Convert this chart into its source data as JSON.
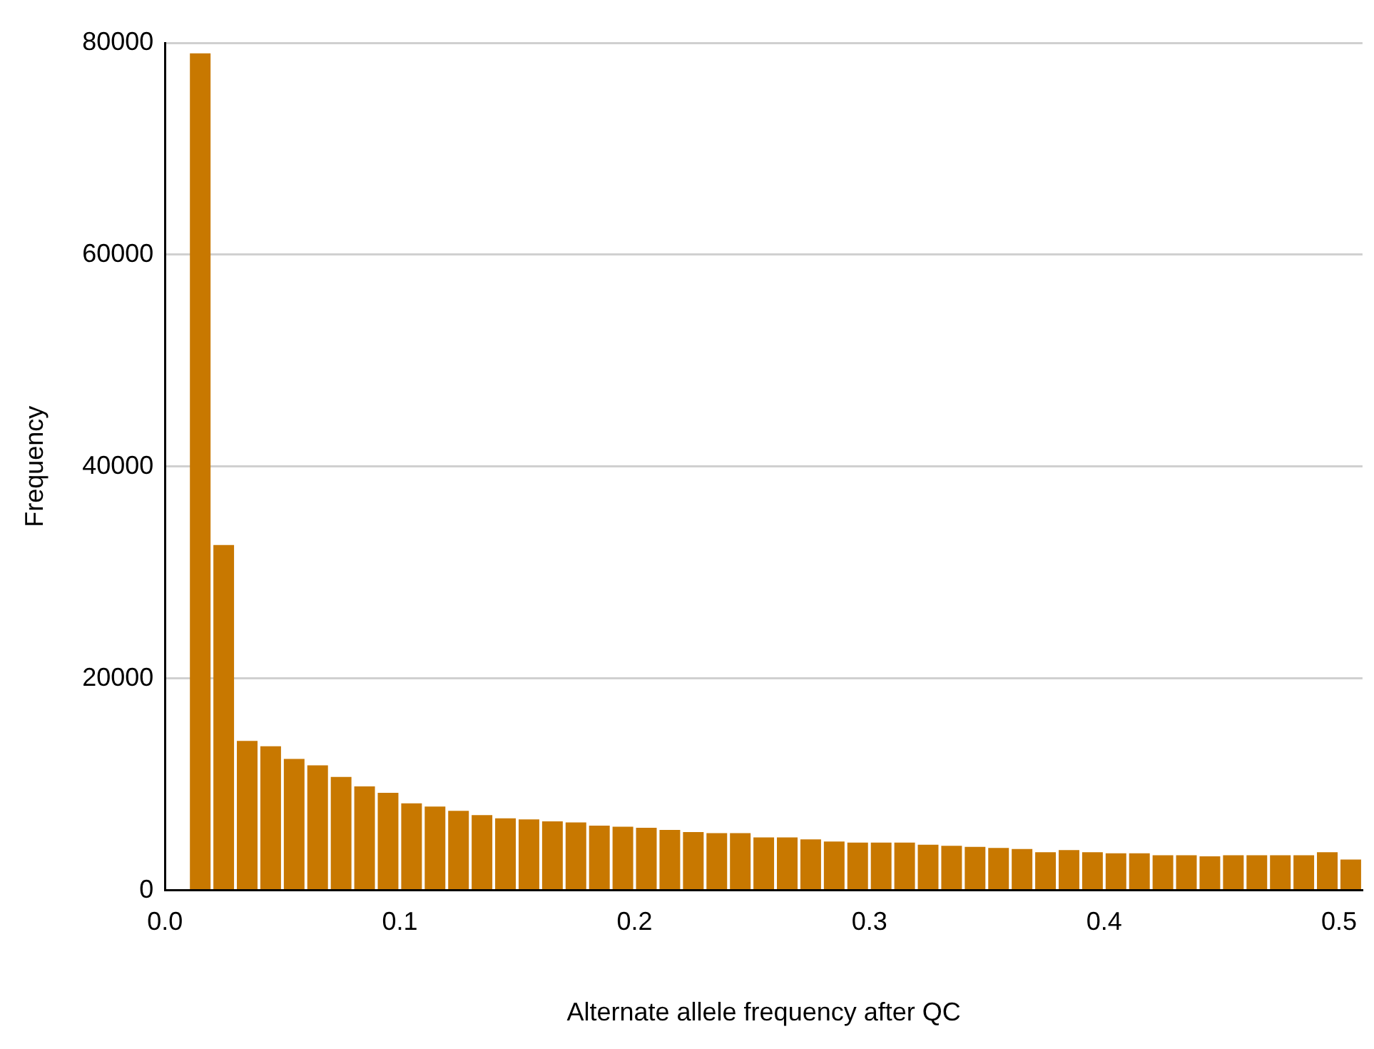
{
  "chart_data": {
    "type": "histogram",
    "xlabel": "Alternate allele frequency after QC",
    "ylabel": "Frequency",
    "bins": [
      0.01,
      0.02,
      0.03,
      0.04,
      0.05,
      0.06,
      0.07,
      0.08,
      0.09,
      0.1,
      0.11,
      0.12,
      0.13,
      0.14,
      0.15,
      0.16,
      0.17,
      0.18,
      0.19,
      0.2,
      0.21,
      0.22,
      0.23,
      0.24,
      0.25,
      0.26,
      0.27,
      0.28,
      0.29,
      0.3,
      0.31,
      0.32,
      0.33,
      0.34,
      0.35,
      0.36,
      0.37,
      0.38,
      0.39,
      0.4,
      0.41,
      0.42,
      0.43,
      0.44,
      0.45,
      0.46,
      0.47,
      0.48,
      0.49,
      0.5,
      0.51
    ],
    "values": [
      79000,
      32600,
      14100,
      13600,
      12400,
      11800,
      10700,
      9800,
      9200,
      8200,
      7900,
      7500,
      7100,
      6800,
      6700,
      6500,
      6400,
      6100,
      6000,
      5900,
      5700,
      5500,
      5400,
      5400,
      5000,
      5000,
      4800,
      4600,
      4500,
      4500,
      4500,
      4300,
      4200,
      4100,
      4000,
      3900,
      3600,
      3800,
      3600,
      3500,
      3500,
      3300,
      3300,
      3200,
      3300,
      3300,
      3300,
      3300,
      3600,
      2900
    ],
    "color": "#c87800",
    "xlim": [
      0,
      0.51
    ],
    "xticks": [
      {
        "value": 0,
        "label": "0.0"
      },
      0.1,
      0.2,
      0.3,
      0.4,
      0.5
    ],
    "ylim": [
      0,
      80000
    ],
    "yticks": [
      0,
      20000,
      40000,
      60000,
      80000
    ],
    "grid": "y"
  }
}
